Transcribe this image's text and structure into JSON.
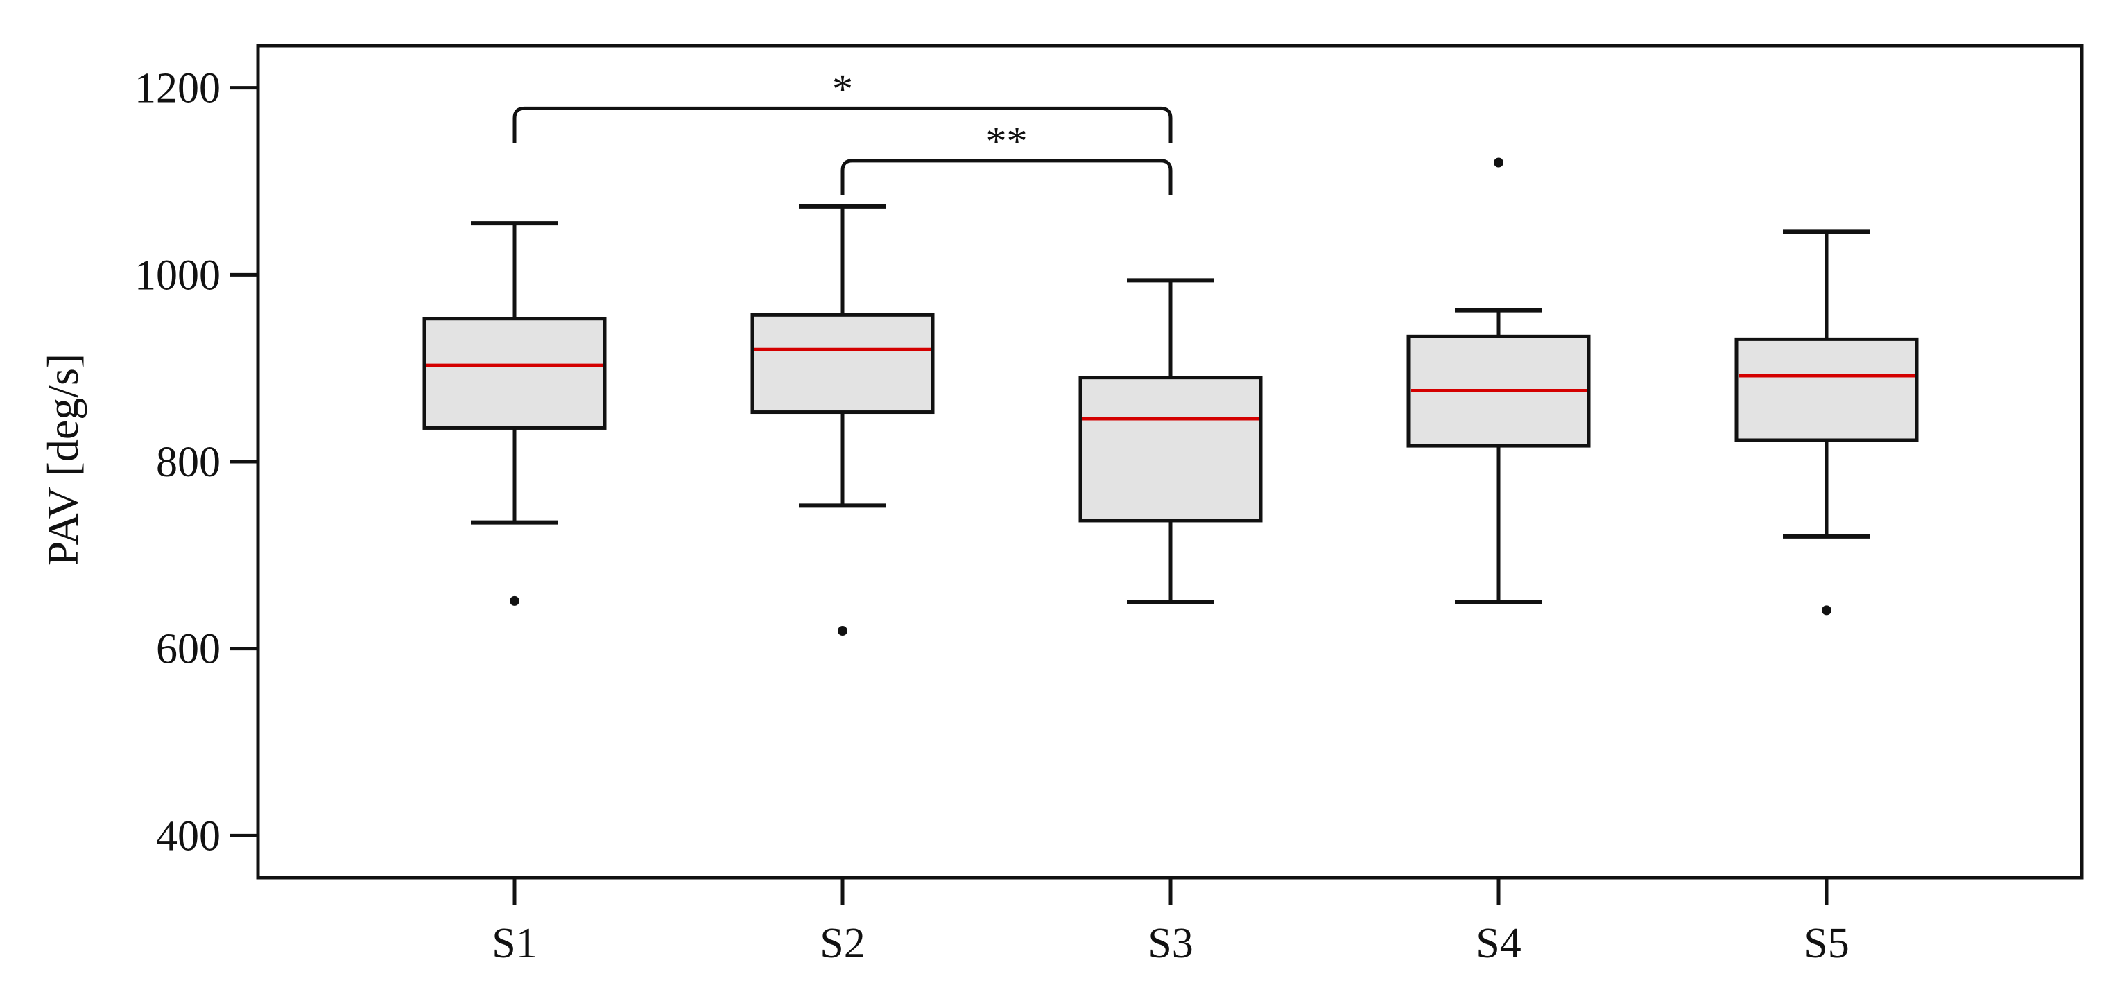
{
  "chart_data": {
    "type": "box",
    "ylabel": "PAV [deg/s]",
    "xlabel": "",
    "ylim": [
      355,
      1245
    ],
    "yticks": [
      400,
      600,
      800,
      1000,
      1200
    ],
    "categories": [
      "S1",
      "S2",
      "S3",
      "S4",
      "S5"
    ],
    "boxes": [
      {
        "category": "S1",
        "whisker_low": 735,
        "q1": 836,
        "median": 903,
        "q3": 953,
        "whisker_high": 1055,
        "outliers": [
          651
        ]
      },
      {
        "category": "S2",
        "whisker_low": 753,
        "q1": 853,
        "median": 920,
        "q3": 957,
        "whisker_high": 1073,
        "outliers": [
          619
        ]
      },
      {
        "category": "S3",
        "whisker_low": 650,
        "q1": 737,
        "median": 846,
        "q3": 890,
        "whisker_high": 994,
        "outliers": []
      },
      {
        "category": "S4",
        "whisker_low": 650,
        "q1": 817,
        "median": 876,
        "q3": 934,
        "whisker_high": 962,
        "outliers": [
          1120
        ]
      },
      {
        "category": "S5",
        "whisker_low": 720,
        "q1": 823,
        "median": 892,
        "q3": 931,
        "whisker_high": 1046,
        "outliers": [
          641
        ]
      }
    ],
    "significance": [
      {
        "from": "S1",
        "to": "S3",
        "label": "*",
        "y": 1178
      },
      {
        "from": "S2",
        "to": "S3",
        "label": "**",
        "y": 1122
      }
    ],
    "colors": {
      "box_fill": "#e3e3e3",
      "box_edge": "#111111",
      "median": "#d40000",
      "axis": "#111111"
    },
    "grid": false
  }
}
